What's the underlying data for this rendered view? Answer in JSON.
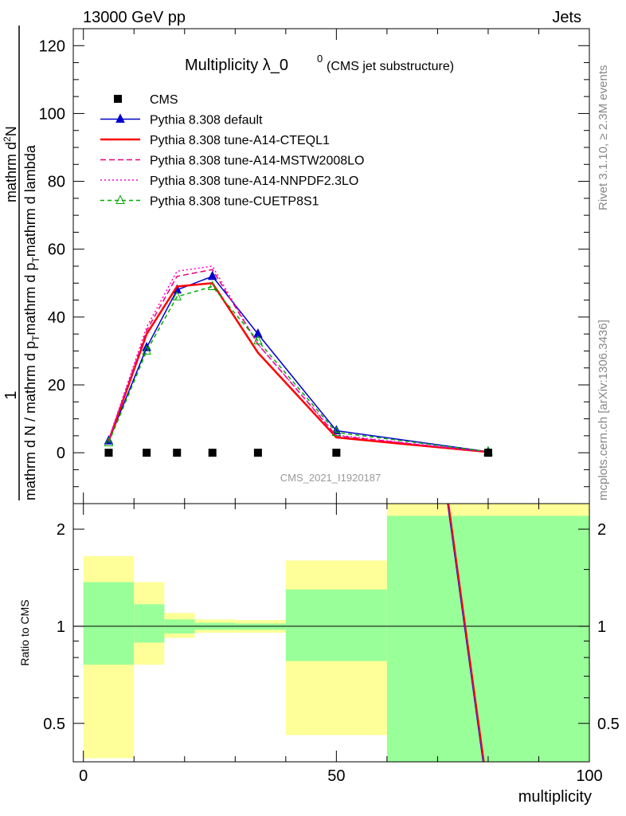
{
  "header": {
    "left": "13000 GeV pp",
    "right": "Jets"
  },
  "side_labels": {
    "rivet": "Rivet 3.1.10, ≥ 2.3M events",
    "mcplots": "mcplots.cern.ch [arXiv:1306.3436]"
  },
  "chart_data": [
    {
      "type": "line",
      "title_main": "Multiplicity λ_0",
      "title_sup": "0",
      "title_sub": "(CMS jet substructure)",
      "watermark": "CMS_2021_I1920187",
      "ylabel_numerator": "1",
      "ylabel_denominator": "mathrm d N / mathrm d p",
      "ylabel_den_sub": "T",
      "ylabel_den_tail": "mathrm d p",
      "ylabel_den_sub2": "T",
      "ylabel_den_tail2": "mathrm d lambda",
      "ylabel_top": "mathrm d",
      "ylabel_top_sup": "2",
      "ylabel_top_tail": "N",
      "ylabel_lines": [
        "mathrm d",
        "2",
        "N",
        "mathrm d N / mathrm d p",
        "T",
        "mathrm d p",
        "T",
        "mathrm d lambda",
        "1"
      ],
      "xlim": [
        -2,
        100
      ],
      "ylim": [
        -15,
        125
      ],
      "yticks": [
        0,
        20,
        40,
        60,
        80,
        100,
        120
      ],
      "legend_position": "top-left",
      "data_ref": {
        "name": "CMS",
        "x": [
          5,
          12.5,
          18.5,
          25.5,
          34.5,
          50,
          80
        ],
        "y": [
          0,
          0,
          0,
          0,
          0,
          0,
          0
        ]
      },
      "series": [
        {
          "name": "Pythia 8.308 default",
          "color": "#0000cc",
          "style": "solid",
          "marker": "triangle-filled",
          "x": [
            5,
            12.5,
            18.5,
            25.5,
            34.5,
            50,
            80
          ],
          "y": [
            3.5,
            31,
            48,
            52,
            35,
            6.5,
            0.3
          ]
        },
        {
          "name": "Pythia 8.308 tune-A14-CTEQL1",
          "color": "#ff0000",
          "style": "solid-thick",
          "marker": "none",
          "x": [
            5,
            12.5,
            18.5,
            25.5,
            34.5,
            50,
            80
          ],
          "y": [
            3.5,
            35,
            49,
            50,
            29.5,
            4.5,
            0.2
          ]
        },
        {
          "name": "Pythia 8.308 tune-A14-MSTW2008LO",
          "color": "#e8007a",
          "style": "dashed",
          "marker": "none",
          "x": [
            5,
            12.5,
            18.5,
            25.5,
            34.5,
            50,
            80
          ],
          "y": [
            3.8,
            36,
            52,
            54,
            32,
            5,
            0.2
          ]
        },
        {
          "name": "Pythia 8.308 tune-A14-NNPDF2.3LO",
          "color": "#ff00cc",
          "style": "dotted",
          "marker": "none",
          "x": [
            5,
            12.5,
            18.5,
            25.5,
            34.5,
            50,
            80
          ],
          "y": [
            4,
            37,
            53.5,
            55,
            32,
            5.2,
            0.2
          ]
        },
        {
          "name": "Pythia 8.308 tune-CUETP8S1",
          "color": "#00aa00",
          "style": "dashed-thin",
          "marker": "triangle-open",
          "x": [
            5,
            12.5,
            18.5,
            25.5,
            34.5,
            50,
            80
          ],
          "y": [
            3,
            30,
            46,
            49,
            33,
            6,
            0.3
          ]
        }
      ]
    },
    {
      "type": "area",
      "ylabel": "Ratio to CMS",
      "xlabel": "multiplicity",
      "xlim": [
        -2,
        100
      ],
      "ylim": [
        0.38,
        2.4
      ],
      "yticks": [
        0.5,
        1,
        2
      ],
      "ytick_labels": [
        "0.5",
        "1",
        "2"
      ],
      "xticks": [
        0,
        50,
        100
      ],
      "xtick_labels": [
        "0",
        "50",
        "100"
      ],
      "reference": 1,
      "bands": [
        {
          "x0": 0,
          "x1": 10,
          "green": [
            0.76,
            1.37
          ],
          "yellow": [
            0.39,
            1.65
          ]
        },
        {
          "x0": 10,
          "x1": 16,
          "green": [
            0.89,
            1.17
          ],
          "yellow": [
            0.76,
            1.37
          ]
        },
        {
          "x0": 16,
          "x1": 22,
          "green": [
            0.95,
            1.05
          ],
          "yellow": [
            0.92,
            1.1
          ]
        },
        {
          "x0": 22,
          "x1": 30,
          "green": [
            0.975,
            1.025
          ],
          "yellow": [
            0.955,
            1.05
          ]
        },
        {
          "x0": 30,
          "x1": 40,
          "green": [
            0.975,
            1.02
          ],
          "yellow": [
            0.955,
            1.045
          ]
        },
        {
          "x0": 40,
          "x1": 60,
          "green": [
            0.78,
            1.3
          ],
          "yellow": [
            0.46,
            1.6
          ]
        },
        {
          "x0": 60,
          "x1": 100,
          "green": [
            0.38,
            2.2
          ],
          "yellow": [
            0.38,
            2.4
          ]
        }
      ],
      "ratio_lines": [
        {
          "color": "#0000cc",
          "x": [
            72,
            79
          ],
          "y": [
            2.4,
            0.38
          ]
        },
        {
          "color": "#e8007a",
          "x": [
            72.1,
            79.1
          ],
          "y": [
            2.4,
            0.38
          ]
        },
        {
          "color": "#ff0000",
          "x": [
            72.2,
            79.2
          ],
          "y": [
            2.4,
            0.38
          ]
        }
      ],
      "colors": {
        "green": "#99ff99",
        "yellow": "#ffff99"
      }
    }
  ]
}
